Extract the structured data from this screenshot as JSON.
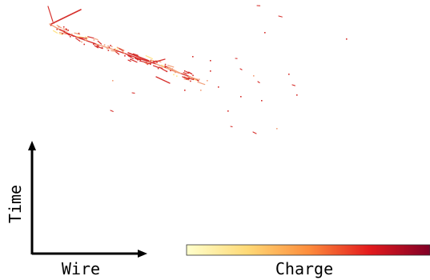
{
  "axes": {
    "x_label": "Wire",
    "y_label": "Time"
  },
  "colorbar": {
    "label": "Charge",
    "colormap": "YlOrRd",
    "stops": [
      "#ffffcc",
      "#fed976",
      "#fd8d3c",
      "#e31a1c",
      "#800026"
    ]
  },
  "colors": {
    "axis": "#000000",
    "track_main": "#d62f2b",
    "track_light": "#f2a07a",
    "track_hot": "#ffe48a"
  }
}
